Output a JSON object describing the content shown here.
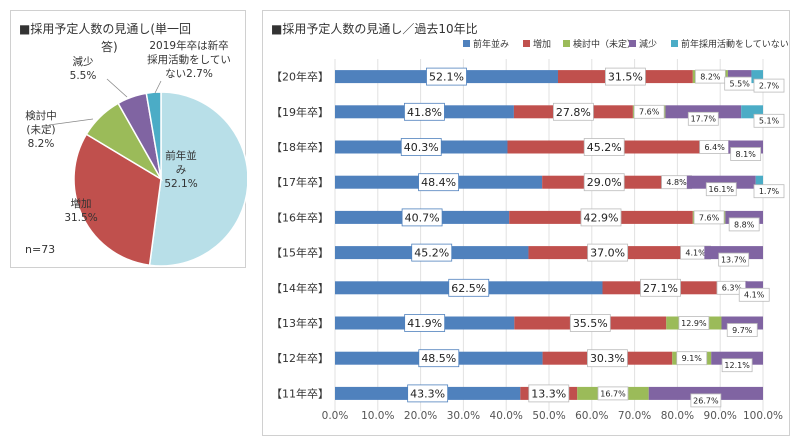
{
  "chart_data": [
    {
      "type": "pie",
      "title_lines": [
        "■採用予定人数の見通し(単一回",
        "答)"
      ],
      "note": "n=73",
      "slices": [
        {
          "label_lines": [
            "前年並",
            "み"
          ],
          "value": 52.1,
          "value_text": "52.1%",
          "color": "#b8dfe8"
        },
        {
          "label_lines": [
            "増加"
          ],
          "value": 31.5,
          "value_text": "31.5%",
          "color": "#c0504d"
        },
        {
          "label_lines": [
            "検討中",
            "(未定)"
          ],
          "value": 8.2,
          "value_text": "8.2%",
          "color": "#9bbb59"
        },
        {
          "label_lines": [
            "減少"
          ],
          "value": 5.5,
          "value_text": "5.5%",
          "color": "#8064a2"
        },
        {
          "label_lines": [
            "2019年卒は新卒",
            "採用活動をしてい",
            "ない"
          ],
          "value": 2.7,
          "value_text": "2.7%",
          "color": "#4bacc6"
        }
      ]
    },
    {
      "type": "bar",
      "stacked": true,
      "orientation": "horizontal",
      "title": "■採用予定人数の見通し／過去10年比",
      "legend_position": "top",
      "categories": [
        "【20年卒】",
        "【19年卒】",
        "【18年卒】",
        "【17年卒】",
        "【16年卒】",
        "【15年卒】",
        "【14年卒】",
        "【13年卒】",
        "【12年卒】",
        "【11年卒】"
      ],
      "xlim": [
        0,
        100
      ],
      "x_ticks": [
        "0.0%",
        "10.0%",
        "20.0%",
        "30.0%",
        "40.0%",
        "50.0%",
        "60.0%",
        "70.0%",
        "80.0%",
        "90.0%",
        "100.0%"
      ],
      "series": [
        {
          "name": "前年並み",
          "color": "#4f81bd",
          "values": [
            52.1,
            41.8,
            40.3,
            48.4,
            40.7,
            45.2,
            62.5,
            41.9,
            48.5,
            43.3
          ]
        },
        {
          "name": "増加",
          "color": "#c0504d",
          "values": [
            31.5,
            27.8,
            45.2,
            29.0,
            42.9,
            37.0,
            27.1,
            35.5,
            30.3,
            13.3
          ]
        },
        {
          "name": "検討中（未定）",
          "color": "#9bbb59",
          "values": [
            8.2,
            7.6,
            6.4,
            4.8,
            7.6,
            4.1,
            6.3,
            12.9,
            9.1,
            16.7
          ]
        },
        {
          "name": "減少",
          "color": "#8064a2",
          "values": [
            5.5,
            17.7,
            8.1,
            16.1,
            8.8,
            13.7,
            4.1,
            9.7,
            12.1,
            26.7
          ]
        },
        {
          "name": "前年採用活動をしていない",
          "color": "#4bacc6",
          "values": [
            2.7,
            5.1,
            null,
            1.7,
            null,
            null,
            null,
            null,
            null,
            null
          ]
        }
      ]
    }
  ]
}
